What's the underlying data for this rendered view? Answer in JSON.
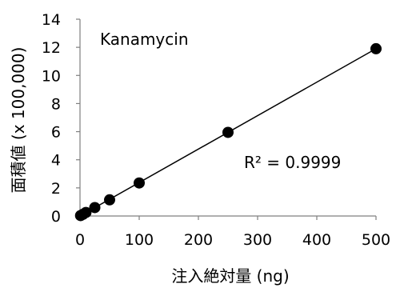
{
  "chart_data": {
    "type": "scatter",
    "title": "",
    "xlabel": "注入絶対量 (ng)",
    "ylabel": "面積値 (x 100,000)",
    "xlim": [
      0,
      500
    ],
    "ylim": [
      0,
      14
    ],
    "xticks": [
      0,
      100,
      200,
      300,
      400,
      500
    ],
    "yticks": [
      0,
      2,
      4,
      6,
      8,
      10,
      12,
      14
    ],
    "grid": false,
    "legend": "none",
    "series": [
      {
        "name": "Kanamycin",
        "x": [
          1,
          5,
          10,
          25,
          50,
          100,
          250,
          500
        ],
        "y": [
          0.03,
          0.12,
          0.25,
          0.6,
          1.15,
          2.35,
          5.95,
          11.9
        ]
      }
    ],
    "trendline": {
      "type": "linear",
      "x": [
        0,
        500
      ],
      "y": [
        0.0,
        11.9
      ],
      "r_squared_label": "R² = 0.9999"
    },
    "annotations": {
      "compound": "Kanamycin",
      "r_squared": "R² = 0.9999"
    },
    "colors": {
      "marker": "#000000",
      "line": "#000000",
      "axis": "#7f7f7f"
    }
  }
}
